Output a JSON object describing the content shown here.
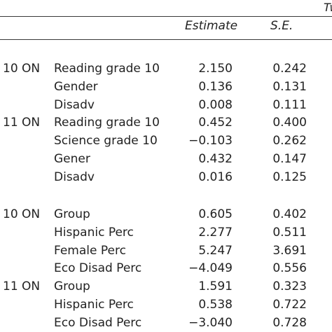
{
  "header": {
    "truncated_title": "Tw",
    "estimate": "Estimate",
    "se": "S.E."
  },
  "sections": [
    {
      "rows": [
        {
          "group": "10 ON",
          "variable": "Reading grade 10",
          "estimate": "2.150",
          "se": "0.242"
        },
        {
          "group": "",
          "variable": "Gender",
          "estimate": "0.136",
          "se": "0.131"
        },
        {
          "group": "",
          "variable": "Disadv",
          "estimate": "0.008",
          "se": "0.111"
        },
        {
          "group": "11 ON",
          "variable": "Reading grade 10",
          "estimate": "0.452",
          "se": "0.400"
        },
        {
          "group": "",
          "variable": "Science grade 10",
          "estimate": "−0.103",
          "se": "0.262"
        },
        {
          "group": "",
          "variable": "Gener",
          "estimate": "0.432",
          "se": "0.147"
        },
        {
          "group": "",
          "variable": "Disadv",
          "estimate": "0.016",
          "se": "0.125"
        }
      ]
    },
    {
      "rows": [
        {
          "group": "10 ON",
          "variable": "Group",
          "estimate": "0.605",
          "se": "0.402"
        },
        {
          "group": "",
          "variable": "Hispanic Perc",
          "estimate": "2.277",
          "se": "0.511"
        },
        {
          "group": "",
          "variable": "Female Perc",
          "estimate": "5.247",
          "se": "3.691"
        },
        {
          "group": "",
          "variable": "Eco Disad Perc",
          "estimate": "−4.049",
          "se": "0.556"
        },
        {
          "group": "11 ON",
          "variable": "Group",
          "estimate": "1.591",
          "se": "0.323"
        },
        {
          "group": "",
          "variable": "Hispanic Perc",
          "estimate": "0.538",
          "se": "0.722"
        },
        {
          "group": "",
          "variable": "Eco Disad Perc",
          "estimate": "−3.040",
          "se": "0.728"
        }
      ]
    }
  ]
}
